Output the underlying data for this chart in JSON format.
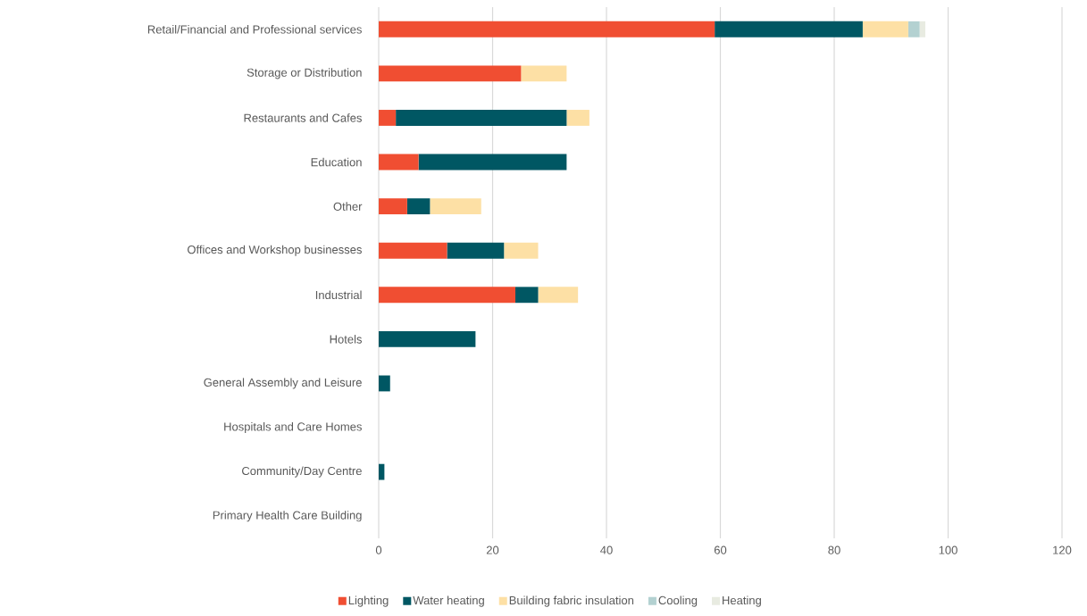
{
  "chart_data": {
    "type": "bar",
    "orientation": "horizontal",
    "stacked": true,
    "categories": [
      "Retail/Financial and Professional services",
      "Storage or Distribution",
      "Restaurants and Cafes",
      "Education",
      "Other",
      "Offices and Workshop businesses",
      "Industrial",
      "Hotels",
      "General Assembly and Leisure",
      "Hospitals and Care Homes",
      "Community/Day Centre",
      "Primary Health Care Building"
    ],
    "series": [
      {
        "name": "Lighting",
        "color": "#f04e32",
        "values": [
          59,
          25,
          3,
          7,
          5,
          12,
          24,
          0,
          0,
          0,
          0,
          0
        ]
      },
      {
        "name": "Water heating",
        "color": "#005763",
        "values": [
          26,
          0,
          30,
          26,
          4,
          10,
          4,
          17,
          2,
          0,
          1,
          0
        ]
      },
      {
        "name": "Building fabric insulation",
        "color": "#fde0a5",
        "values": [
          8,
          8,
          4,
          0,
          9,
          6,
          7,
          0,
          0,
          0,
          0,
          0
        ]
      },
      {
        "name": "Cooling",
        "color": "#b3d1d1",
        "values": [
          2,
          0,
          0,
          0,
          0,
          0,
          0,
          0,
          0,
          0,
          0,
          0
        ]
      },
      {
        "name": "Heating",
        "color": "#e8ebe1",
        "values": [
          1,
          0,
          0,
          0,
          0,
          0,
          0,
          0,
          0,
          0,
          0,
          0
        ]
      }
    ],
    "xlim": [
      0,
      120
    ],
    "xticks": [
      0,
      20,
      40,
      60,
      80,
      100,
      120
    ],
    "grid": "x",
    "legend": "bottom"
  }
}
